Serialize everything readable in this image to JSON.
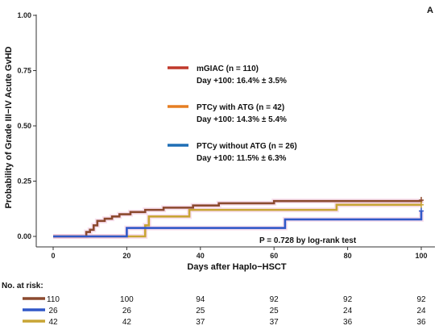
{
  "panel_label": "A",
  "chart_data": {
    "type": "line",
    "subtype": "kaplan-meier-cumulative-incidence",
    "xlabel": "Days after Haplo−HSCT",
    "ylabel": "Probability of Grade III−IV Acute GvHD",
    "xlim": [
      0,
      100
    ],
    "ylim": [
      0,
      1
    ],
    "x_ticks": [
      "0",
      "20",
      "40",
      "60",
      "80",
      "100"
    ],
    "y_ticks": [
      "0.00",
      "0.25",
      "0.50",
      "0.75",
      "1.00"
    ],
    "grid": false,
    "annotation": "P = 0.728 by log-rank test",
    "series": [
      {
        "name": "mGIAC (n = 110)",
        "stat": "Day +100: 16.4% ± 3.5%",
        "color": "#8c4a2f",
        "band_color": "#f3c6e0",
        "points": [
          [
            0,
            0
          ],
          [
            8,
            0
          ],
          [
            9,
            0.02
          ],
          [
            10,
            0.03
          ],
          [
            11,
            0.05
          ],
          [
            12,
            0.07
          ],
          [
            14,
            0.08
          ],
          [
            16,
            0.09
          ],
          [
            18,
            0.1
          ],
          [
            20,
            0.1
          ],
          [
            21,
            0.11
          ],
          [
            25,
            0.12
          ],
          [
            30,
            0.13
          ],
          [
            38,
            0.14
          ],
          [
            45,
            0.15
          ],
          [
            60,
            0.16
          ],
          [
            100,
            0.164
          ]
        ]
      },
      {
        "name": "PTCy with ATG (n = 42)",
        "stat": "Day +100: 14.3% ± 5.4%",
        "color": "#c8a535",
        "band_color": "#f3c6e0",
        "points": [
          [
            0,
            0
          ],
          [
            24,
            0
          ],
          [
            25,
            0.05
          ],
          [
            26,
            0.09
          ],
          [
            37,
            0.12
          ],
          [
            76,
            0.12
          ],
          [
            77,
            0.143
          ],
          [
            100,
            0.143
          ]
        ]
      },
      {
        "name": "PTCy without ATG (n = 26)",
        "stat": "Day +100: 11.5% ± 6.3%",
        "color": "#3058c8",
        "band_color": "#f3c6e0",
        "points": [
          [
            0,
            0
          ],
          [
            20,
            0
          ],
          [
            20,
            0.038
          ],
          [
            63,
            0.038
          ],
          [
            63,
            0.077
          ],
          [
            100,
            0.077
          ],
          [
            100,
            0.115
          ]
        ]
      }
    ],
    "legend": [
      {
        "line_color": "#c0392b",
        "label": "mGIAC (n = 110)",
        "stat": "Day +100: 16.4% ± 3.5%"
      },
      {
        "line_color": "#e67e22",
        "label": "PTCy with ATG (n = 42)",
        "stat": "Day +100: 14.3% ± 5.4%"
      },
      {
        "line_color": "#1f6fb5",
        "label": "PTCy without ATG (n = 26)",
        "stat": "Day +100: 11.5% ± 6.3%"
      }
    ],
    "risk_table": {
      "title": "No. at risk:",
      "times": [
        0,
        20,
        40,
        60,
        80,
        100
      ],
      "rows": [
        {
          "color": "#8c4a2f",
          "values": [
            "110",
            "100",
            "94",
            "92",
            "92",
            "92"
          ]
        },
        {
          "color": "#3058c8",
          "values": [
            "26",
            "26",
            "25",
            "25",
            "24",
            "24"
          ]
        },
        {
          "color": "#c8a535",
          "values": [
            "42",
            "42",
            "37",
            "37",
            "36",
            "36"
          ]
        }
      ]
    }
  }
}
